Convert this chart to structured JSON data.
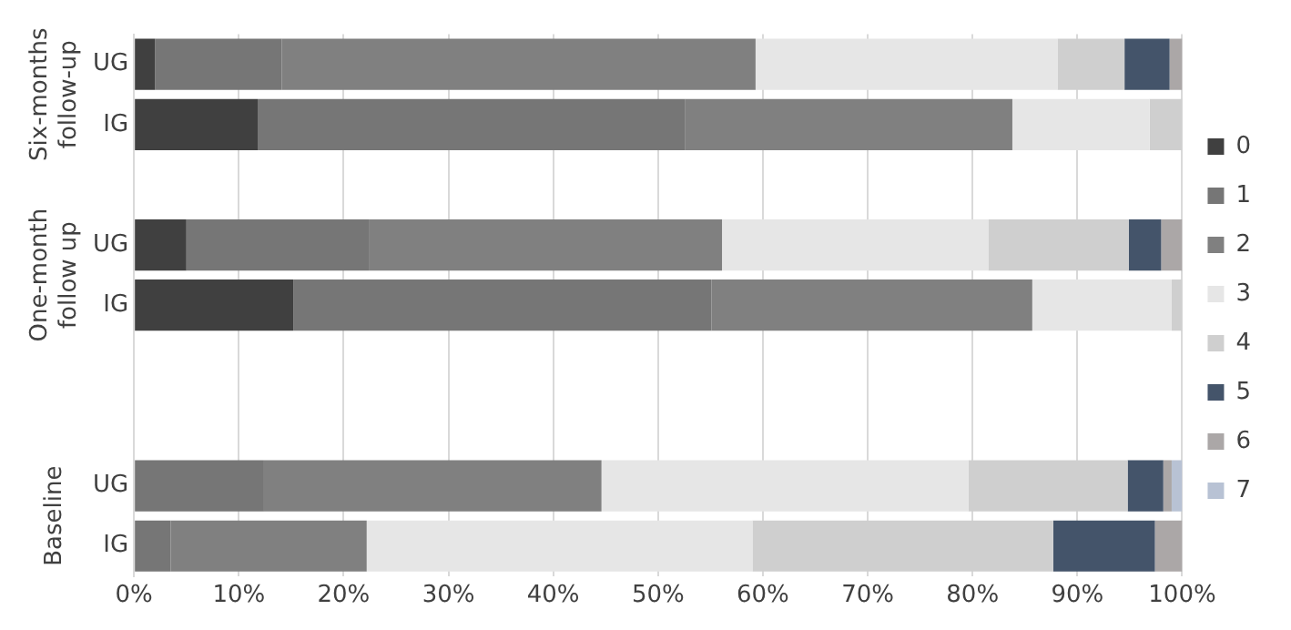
{
  "chart_data": {
    "type": "bar",
    "orientation": "horizontal",
    "stacked": true,
    "categories": [
      "UG",
      "IG",
      null,
      "UG",
      "IG",
      null,
      null,
      "UG",
      "IG"
    ],
    "series": [
      {
        "name": "0",
        "color": "#404040",
        "values": [
          2.0,
          11.8,
          null,
          5.0,
          15.2,
          null,
          null,
          0,
          0
        ]
      },
      {
        "name": "1",
        "color": "#767676",
        "values": [
          12.1,
          40.8,
          null,
          17.4,
          39.9,
          null,
          null,
          12.4,
          3.5
        ]
      },
      {
        "name": "2",
        "color": "#808080",
        "values": [
          45.2,
          31.2,
          null,
          33.7,
          30.6,
          null,
          null,
          32.2,
          18.7
        ]
      },
      {
        "name": "3",
        "color": "#e6e6e6",
        "values": [
          28.8,
          13.1,
          null,
          25.4,
          13.3,
          null,
          null,
          35.0,
          36.8
        ]
      },
      {
        "name": "4",
        "color": "#cfcfcf",
        "values": [
          6.4,
          3.1,
          null,
          13.4,
          1.0,
          null,
          null,
          15.2,
          28.7
        ]
      },
      {
        "name": "5",
        "color": "#44546a",
        "values": [
          4.3,
          0,
          null,
          3.1,
          0,
          null,
          null,
          3.4,
          9.7
        ]
      },
      {
        "name": "6",
        "color": "#aba7a7",
        "values": [
          1.2,
          0,
          null,
          2.0,
          0,
          null,
          null,
          0.8,
          2.6
        ]
      },
      {
        "name": "7",
        "color": "#b8c2d4",
        "values": [
          0,
          0,
          null,
          0,
          0,
          null,
          null,
          1.0,
          0
        ]
      }
    ],
    "xlim": [
      0,
      100
    ],
    "xticks": [
      {
        "value": 0,
        "label": "0%"
      },
      {
        "value": 10,
        "label": "10%"
      },
      {
        "value": 20,
        "label": "20%"
      },
      {
        "value": 30,
        "label": "30%"
      },
      {
        "value": 40,
        "label": "40%"
      },
      {
        "value": 50,
        "label": "50%"
      },
      {
        "value": 60,
        "label": "60%"
      },
      {
        "value": 70,
        "label": "70%"
      },
      {
        "value": 80,
        "label": "80%"
      },
      {
        "value": 90,
        "label": "90%"
      },
      {
        "value": 100,
        "label": "100%"
      }
    ],
    "annotations": [
      "Six-months follow-up",
      "One-month follow up",
      "Baseline"
    ],
    "grid": "x",
    "legend": "right"
  }
}
